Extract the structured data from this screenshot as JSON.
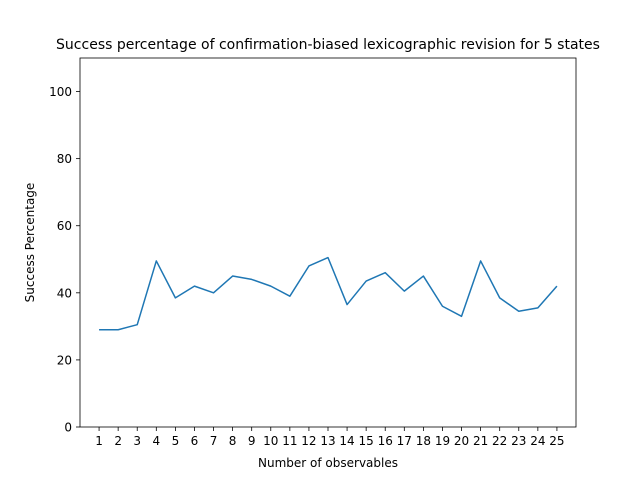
{
  "chart_data": {
    "type": "line",
    "title": "Success percentage of confirmation-biased lexicographic revision for 5 states",
    "xlabel": "Number of observables",
    "ylabel": "Success Percentage",
    "x": [
      1,
      2,
      3,
      4,
      5,
      6,
      7,
      8,
      9,
      10,
      11,
      12,
      13,
      14,
      15,
      16,
      17,
      18,
      19,
      20,
      21,
      22,
      23,
      24,
      25
    ],
    "xticks": [
      "1",
      "2",
      "3",
      "4",
      "5",
      "6",
      "7",
      "8",
      "9",
      "10",
      "11",
      "12",
      "13",
      "14",
      "15",
      "16",
      "17",
      "18",
      "19",
      "20",
      "21",
      "22",
      "23",
      "24",
      "25"
    ],
    "xlim": [
      0,
      26
    ],
    "ylim": [
      0,
      110
    ],
    "yticks": [
      0,
      20,
      40,
      60,
      80,
      100
    ],
    "grid": false,
    "series": [
      {
        "color": "#1f77b4",
        "values": [
          29,
          29,
          30.5,
          49.5,
          38.5,
          42,
          40,
          45,
          44,
          42,
          39,
          48,
          50.5,
          36.5,
          43.5,
          46,
          40.5,
          45,
          36,
          33,
          49.5,
          38.5,
          34.5,
          35.5,
          42
        ]
      }
    ]
  }
}
